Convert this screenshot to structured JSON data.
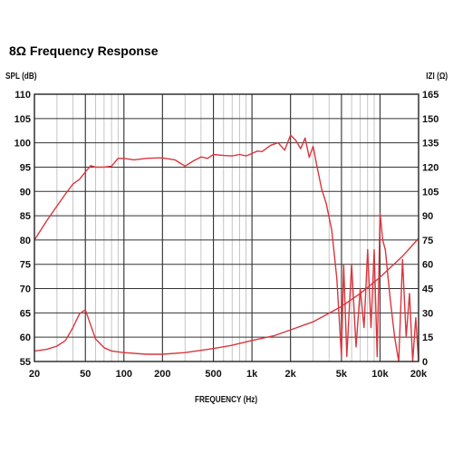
{
  "title": "8Ω Frequency Response",
  "chart_data": [
    {
      "type": "line",
      "x_scale": "log",
      "xlabel": "FREQUENCY (Hz)",
      "ylabel_left": "SPL (dB)",
      "ylabel_right": "IZI (Ω)",
      "xlim": [
        20,
        20000
      ],
      "ylim_left": [
        55,
        110
      ],
      "ylim_right": [
        0,
        165
      ],
      "x_ticks": [
        20,
        50,
        100,
        200,
        500,
        1000,
        2000,
        5000,
        10000,
        20000
      ],
      "x_tick_labels": [
        "20",
        "50",
        "100",
        "200",
        "500",
        "1k",
        "2k",
        "5k",
        "10k",
        "20k"
      ],
      "y_left_ticks": [
        55,
        60,
        65,
        70,
        75,
        80,
        85,
        90,
        95,
        100,
        105,
        110
      ],
      "y_right_ticks": [
        0,
        15,
        30,
        45,
        60,
        75,
        90,
        105,
        120,
        135,
        150,
        165
      ],
      "grid": true,
      "line_color": "#d9363e",
      "series": [
        {
          "axis": "left",
          "x": [
            20,
            25,
            30,
            35,
            40,
            45,
            50,
            55,
            60,
            70,
            80,
            90,
            100,
            120,
            150,
            180,
            200,
            250,
            300,
            350,
            400,
            450,
            500,
            600,
            700,
            800,
            900,
            1000,
            1100,
            1200,
            1400,
            1600,
            1800,
            2000,
            2200,
            2400,
            2600,
            2800,
            3000,
            3200,
            3500,
            3800,
            4200,
            4600,
            5000,
            5200,
            5500,
            6000,
            6500,
            7000,
            7500,
            8000,
            8500,
            9000,
            9500,
            10000,
            10500,
            11000,
            12000,
            13000,
            14000,
            15000,
            16000,
            17000,
            18000,
            19000,
            20000
          ],
          "y": [
            80,
            84,
            87,
            89.5,
            91.5,
            92.5,
            94,
            95.3,
            95,
            95,
            95.2,
            96.8,
            96.8,
            96.5,
            96.8,
            96.9,
            96.9,
            96.5,
            95.2,
            96.3,
            97.1,
            96.8,
            97.6,
            97.4,
            97.3,
            97.6,
            97.3,
            97.8,
            98.3,
            98.2,
            99.5,
            100,
            98.5,
            101.6,
            100.5,
            98.8,
            101,
            97,
            99.3,
            95.5,
            90.5,
            87.5,
            82,
            72,
            56,
            75,
            56,
            75,
            58,
            70,
            62,
            78,
            62,
            78,
            56,
            85.5,
            80,
            78,
            68,
            60,
            55,
            76,
            60,
            69,
            55,
            64,
            55
          ]
        },
        {
          "axis": "right",
          "x": [
            20,
            25,
            30,
            35,
            40,
            45,
            50,
            55,
            60,
            70,
            80,
            100,
            150,
            200,
            300,
            500,
            700,
            1000,
            1500,
            2000,
            3000,
            5000,
            7000,
            10000,
            15000,
            20000
          ],
          "y": [
            6.5,
            7.5,
            9.5,
            13,
            21,
            29.5,
            32,
            22.5,
            14,
            8.5,
            6.5,
            5.5,
            4.5,
            4.5,
            5.5,
            8,
            10,
            13,
            16,
            19.5,
            24.5,
            34,
            42,
            52,
            65,
            76
          ]
        }
      ]
    }
  ]
}
